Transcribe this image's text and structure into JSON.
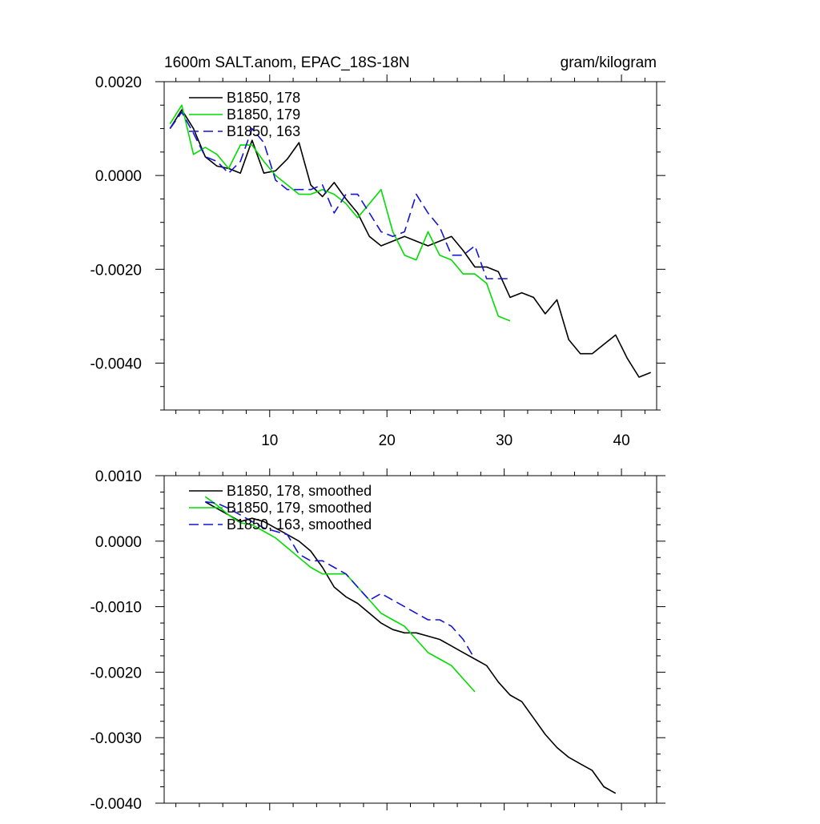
{
  "chart_data": [
    {
      "type": "line",
      "title": "1600m SALT.anom, EPAC_18S-18N",
      "units": "gram/kilogram",
      "xlim": [
        1,
        43
      ],
      "ylim": [
        -0.005,
        0.002
      ],
      "x_ticks": [
        10,
        20,
        30,
        40
      ],
      "y_ticks": [
        0.002,
        0.0,
        -0.002,
        -0.004
      ],
      "y_tick_labels": [
        "0.0020",
        "0.0000",
        "-0.0020",
        "-0.0040"
      ],
      "legend_position": "top-left",
      "grid": false,
      "series": [
        {
          "name": "B1850, 178",
          "color": "#000000",
          "dash": "solid",
          "x": [
            1.5,
            2.5,
            3.5,
            4.5,
            5.5,
            6.5,
            7.5,
            8.5,
            9.5,
            10.5,
            11.5,
            12.5,
            13.5,
            14.5,
            15.5,
            16.5,
            17.5,
            18.5,
            19.5,
            20.5,
            21.5,
            22.5,
            23.5,
            24.5,
            25.5,
            26.5,
            27.5,
            28.5,
            29.5,
            30.5,
            31.5,
            32.5,
            33.5,
            34.5,
            35.5,
            36.5,
            37.5,
            38.5,
            39.5,
            40.5,
            41.5,
            42.5
          ],
          "y": [
            0.001,
            0.0014,
            0.001,
            0.0004,
            0.0002,
            0.00015,
            5e-05,
            0.00075,
            5e-05,
            0.0001,
            0.00035,
            0.0007,
            -0.0002,
            -0.00045,
            -0.00015,
            -0.0005,
            -0.0008,
            -0.0013,
            -0.0015,
            -0.0014,
            -0.0013,
            -0.0014,
            -0.0015,
            -0.0014,
            -0.0013,
            -0.0016,
            -0.00195,
            -0.00195,
            -0.00205,
            -0.0026,
            -0.0025,
            -0.0026,
            -0.00295,
            -0.00265,
            -0.0035,
            -0.0038,
            -0.0038,
            -0.0036,
            -0.0034,
            -0.0039,
            -0.0043,
            -0.0042
          ]
        },
        {
          "name": "B1850, 179",
          "color": "#00dd00",
          "dash": "solid",
          "x": [
            1.5,
            2.5,
            3.5,
            4.5,
            5.5,
            6.5,
            7.5,
            8.5,
            9.5,
            10.5,
            11.5,
            12.5,
            13.5,
            14.5,
            15.5,
            16.5,
            17.5,
            18.5,
            19.5,
            20.5,
            21.5,
            22.5,
            23.5,
            24.5,
            25.5,
            26.5,
            27.5,
            28.5,
            29.5,
            30.5
          ],
          "y": [
            0.0011,
            0.0015,
            0.00045,
            0.0006,
            0.00045,
            0.00015,
            0.00065,
            0.00065,
            0.0003,
            0.0,
            -0.0002,
            -0.0004,
            -0.0004,
            -0.0003,
            -0.0004,
            -0.0006,
            -0.0009,
            -0.0006,
            -0.0003,
            -0.0012,
            -0.0017,
            -0.0018,
            -0.0012,
            -0.0017,
            -0.0018,
            -0.0021,
            -0.0021,
            -0.0023,
            -0.003,
            -0.0031
          ]
        },
        {
          "name": "B1850, 163",
          "color": "#1414d2",
          "dash": "dashed",
          "x": [
            1.5,
            2.5,
            3.5,
            4.5,
            5.5,
            6.5,
            7.5,
            8.5,
            9.5,
            10.5,
            11.5,
            12.5,
            13.5,
            14.5,
            15.5,
            16.5,
            17.5,
            18.5,
            19.5,
            20.5,
            21.5,
            22.5,
            23.5,
            24.5,
            25.5,
            26.5,
            27.5,
            28.5,
            29.5,
            30.5
          ],
          "y": [
            0.001,
            0.00135,
            0.0009,
            0.0004,
            0.0003,
            5e-05,
            0.0003,
            0.001,
            0.0007,
            -0.0001,
            -0.0003,
            -0.0003,
            -0.0003,
            -0.0002,
            -0.0008,
            -0.0004,
            -0.0004,
            -0.0008,
            -0.0012,
            -0.0013,
            -0.0012,
            -0.0004,
            -0.0008,
            -0.0011,
            -0.0017,
            -0.0017,
            -0.0015,
            -0.0022,
            -0.0022,
            -0.0022
          ]
        }
      ]
    },
    {
      "type": "line",
      "title": "",
      "xlim": [
        1,
        43
      ],
      "ylim": [
        -0.004,
        0.001
      ],
      "x_ticks": [
        10,
        20,
        30,
        40
      ],
      "y_ticks": [
        0.001,
        0.0,
        -0.001,
        -0.002,
        -0.003,
        -0.004
      ],
      "y_tick_labels": [
        "0.0010",
        "0.0000",
        "-0.0010",
        "-0.0020",
        "-0.0030",
        "-0.0040"
      ],
      "legend_position": "top-left",
      "grid": false,
      "series": [
        {
          "name": "B1850, 178, smoothed",
          "color": "#000000",
          "dash": "solid",
          "x": [
            4.5,
            5.5,
            6.5,
            7.5,
            8.5,
            9.5,
            10.5,
            11.5,
            12.5,
            13.5,
            14.5,
            15.5,
            16.5,
            17.5,
            18.5,
            19.5,
            20.5,
            21.5,
            22.5,
            23.5,
            24.5,
            25.5,
            26.5,
            27.5,
            28.5,
            29.5,
            30.5,
            31.5,
            32.5,
            33.5,
            34.5,
            35.5,
            36.5,
            37.5,
            38.5,
            39.5
          ],
          "y": [
            0.0006,
            0.0005,
            0.0004,
            0.0003,
            0.00035,
            0.0003,
            0.0002,
            0.0001,
            0.0,
            -0.00015,
            -0.0004,
            -0.0007,
            -0.00085,
            -0.00095,
            -0.0011,
            -0.00125,
            -0.00135,
            -0.0014,
            -0.0014,
            -0.00145,
            -0.0015,
            -0.0016,
            -0.0017,
            -0.0018,
            -0.0019,
            -0.00215,
            -0.00235,
            -0.00245,
            -0.0027,
            -0.00295,
            -0.00315,
            -0.0033,
            -0.0034,
            -0.0035,
            -0.00375,
            -0.00385
          ]
        },
        {
          "name": "B1850, 179, smoothed",
          "color": "#00dd00",
          "dash": "solid",
          "x": [
            4.5,
            5.5,
            6.5,
            7.5,
            8.5,
            9.5,
            10.5,
            11.5,
            12.5,
            13.5,
            14.5,
            15.5,
            16.5,
            17.5,
            18.5,
            19.5,
            20.5,
            21.5,
            22.5,
            23.5,
            24.5,
            25.5,
            26.5,
            27.5
          ],
          "y": [
            0.00068,
            0.00055,
            0.0004,
            0.00028,
            0.00025,
            0.00015,
            5e-05,
            -0.0001,
            -0.00025,
            -0.0004,
            -0.0005,
            -0.0005,
            -0.0005,
            -0.0007,
            -0.0009,
            -0.0011,
            -0.0012,
            -0.0013,
            -0.0015,
            -0.0017,
            -0.0018,
            -0.0019,
            -0.0021,
            -0.0023
          ]
        },
        {
          "name": "B1850, 163, smoothed",
          "color": "#1414d2",
          "dash": "dashed",
          "x": [
            4.5,
            5.5,
            6.5,
            7.5,
            8.5,
            9.5,
            10.5,
            11.5,
            12.5,
            13.5,
            14.5,
            15.5,
            16.5,
            17.5,
            18.5,
            19.5,
            20.5,
            21.5,
            22.5,
            23.5,
            24.5,
            25.5,
            26.5,
            27.5
          ],
          "y": [
            0.0006,
            0.00058,
            0.0005,
            0.0004,
            0.0003,
            0.0002,
            0.00015,
            0.0001,
            -0.0002,
            -0.0003,
            -0.0003,
            -0.0004,
            -0.0005,
            -0.0007,
            -0.0009,
            -0.0008,
            -0.0009,
            -0.001,
            -0.0011,
            -0.0012,
            -0.0012,
            -0.0013,
            -0.0015,
            -0.0018
          ]
        }
      ]
    }
  ]
}
